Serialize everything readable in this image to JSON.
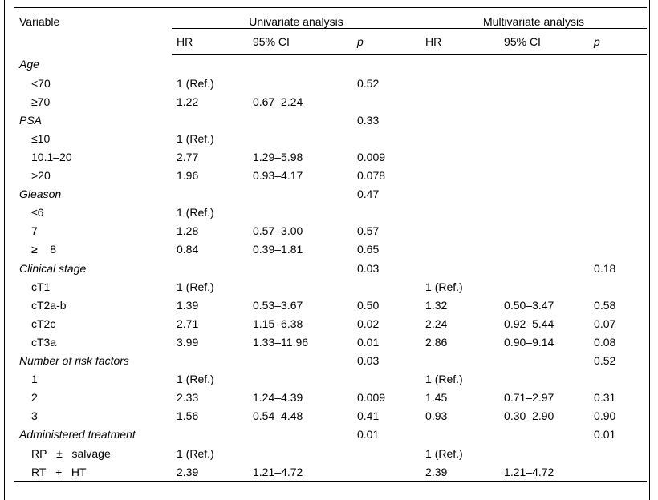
{
  "page": {
    "background": "#ffffff",
    "text_color": "#000000",
    "rule_color": "#000000"
  },
  "table": {
    "variable_header": "Variable",
    "group_headers": {
      "univariate": "Univariate analysis",
      "multivariate": "Multivariate analysis"
    },
    "subheaders": [
      "HR",
      "95% CI",
      "p",
      "HR",
      "95% CI",
      "p"
    ],
    "rows": [
      {
        "label": "Age",
        "style": "section",
        "cells": [
          "",
          "",
          "",
          "",
          "",
          ""
        ]
      },
      {
        "label": "<70",
        "style": "item",
        "cells": [
          "1 (Ref.)",
          "",
          "0.52",
          "",
          "",
          ""
        ]
      },
      {
        "label": "≥70",
        "style": "item",
        "cells": [
          "1.22",
          "0.67–2.24",
          "",
          "",
          "",
          ""
        ]
      },
      {
        "label": "PSA",
        "style": "section",
        "cells": [
          "",
          "",
          "0.33",
          "",
          "",
          ""
        ]
      },
      {
        "label": "≤10",
        "style": "item",
        "cells": [
          "1 (Ref.)",
          "",
          "",
          "",
          "",
          ""
        ]
      },
      {
        "label": "10.1–20",
        "style": "item",
        "cells": [
          "2.77",
          "1.29–5.98",
          "0.009",
          "",
          "",
          ""
        ]
      },
      {
        "label": ">20",
        "style": "item",
        "cells": [
          "1.96",
          "0.93–4.17",
          "0.078",
          "",
          "",
          ""
        ]
      },
      {
        "label": "Gleason",
        "style": "section",
        "cells": [
          "",
          "",
          "0.47",
          "",
          "",
          ""
        ]
      },
      {
        "label": "≤6",
        "style": "item",
        "cells": [
          "1 (Ref.)",
          "",
          "",
          "",
          "",
          ""
        ]
      },
      {
        "label": "7",
        "style": "item",
        "cells": [
          "1.28",
          "0.57–3.00",
          "0.57",
          "",
          "",
          ""
        ]
      },
      {
        "label": "≥    8",
        "style": "item",
        "cells": [
          "0.84",
          "0.39–1.81",
          "0.65",
          "",
          "",
          ""
        ]
      },
      {
        "label": "Clinical stage",
        "style": "section",
        "cells": [
          "",
          "",
          "0.03",
          "",
          "",
          "0.18"
        ]
      },
      {
        "label": "cT1",
        "style": "item",
        "cells": [
          "1 (Ref.)",
          "",
          "",
          "1 (Ref.)",
          "",
          ""
        ]
      },
      {
        "label": "cT2a-b",
        "style": "item",
        "cells": [
          "1.39",
          "0.53–3.67",
          "0.50",
          "1.32",
          "0.50–3.47",
          "0.58"
        ]
      },
      {
        "label": "cT2c",
        "style": "item",
        "cells": [
          "2.71",
          "1.15–6.38",
          "0.02",
          "2.24",
          "0.92–5.44",
          "0.07"
        ]
      },
      {
        "label": "cT3a",
        "style": "item",
        "cells": [
          "3.99",
          "1.33–11.96",
          "0.01",
          "2.86",
          "0.90–9.14",
          "0.08"
        ]
      },
      {
        "label": "Number of risk factors",
        "style": "section",
        "cells": [
          "",
          "",
          "0.03",
          "",
          "",
          "0.52"
        ]
      },
      {
        "label": "1",
        "style": "item",
        "cells": [
          "1 (Ref.)",
          "",
          "",
          "1 (Ref.)",
          "",
          ""
        ]
      },
      {
        "label": "2",
        "style": "item",
        "cells": [
          "2.33",
          "1.24–4.39",
          "0.009",
          "1.45",
          "0.71–2.97",
          "0.31"
        ]
      },
      {
        "label": "3",
        "style": "item",
        "cells": [
          "1.56",
          "0.54–4.48",
          "0.41",
          "0.93",
          "0.30–2.90",
          "0.90"
        ]
      },
      {
        "label": "Administered treatment",
        "style": "section",
        "cells": [
          "",
          "",
          "0.01",
          "",
          "",
          "0.01"
        ]
      },
      {
        "label": "RP   ±   salvage",
        "style": "item",
        "cells": [
          "1 (Ref.)",
          "",
          "",
          "1 (Ref.)",
          "",
          ""
        ]
      },
      {
        "label": "RT   +   HT",
        "style": "item",
        "cells": [
          "2.39",
          "1.21–4.72",
          "",
          "2.39",
          "1.21–4.72",
          ""
        ]
      }
    ]
  }
}
